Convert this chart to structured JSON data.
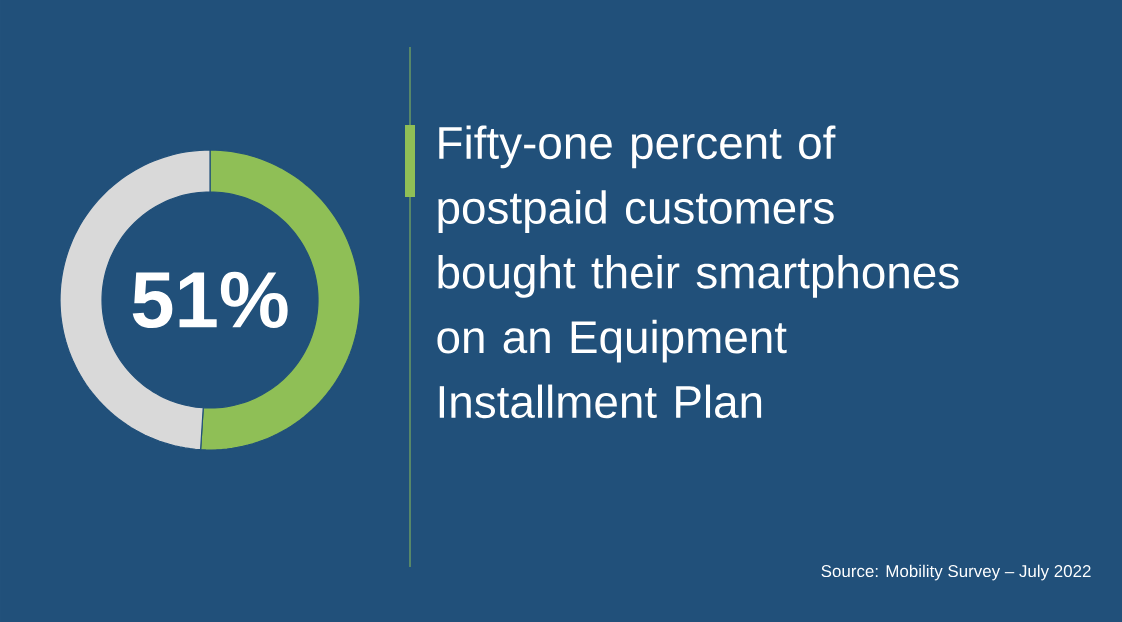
{
  "chart_data": {
    "type": "donut",
    "title": "Fifty-one percent of postpaid customers bought their smartphones on an Equipment Installment Plan",
    "categories": [
      null,
      null
    ],
    "values": [
      51,
      49
    ],
    "colors": [
      "#8fbf56",
      "#d9d9d9"
    ],
    "value_labels": [
      "51%",
      null
    ],
    "annotations": [
      "Source: Mobility Survey – July 2022"
    ]
  }
}
